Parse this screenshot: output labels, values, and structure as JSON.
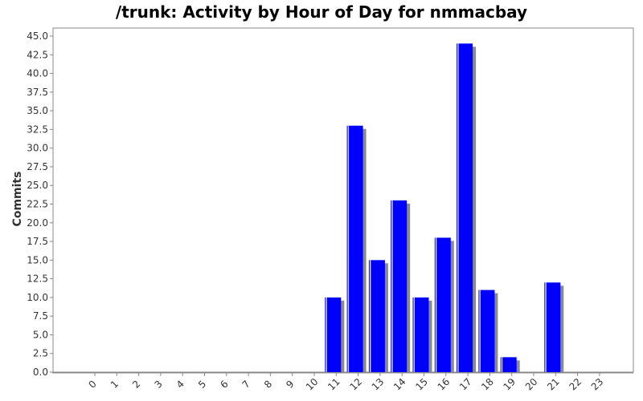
{
  "chart_data": {
    "type": "bar",
    "title": "/trunk: Activity by Hour of Day for nmmacbay",
    "xlabel": "",
    "ylabel": "Commits",
    "categories": [
      "0",
      "1",
      "2",
      "3",
      "4",
      "5",
      "6",
      "7",
      "8",
      "9",
      "10",
      "11",
      "12",
      "13",
      "14",
      "15",
      "16",
      "17",
      "18",
      "19",
      "20",
      "21",
      "22",
      "23"
    ],
    "values": [
      0,
      0,
      0,
      0,
      0,
      0,
      0,
      0,
      0,
      0,
      0,
      10,
      33,
      15,
      23,
      10,
      18,
      44,
      11,
      2,
      0,
      12,
      0,
      0
    ],
    "ylim": [
      0,
      45
    ],
    "yticks": [
      "0.0",
      "2.5",
      "5.0",
      "7.5",
      "10.0",
      "12.5",
      "15.0",
      "17.5",
      "20.0",
      "22.5",
      "25.0",
      "27.5",
      "30.0",
      "32.5",
      "35.0",
      "37.5",
      "40.0",
      "42.5",
      "45.0"
    ],
    "grid": false,
    "legend": "none",
    "colors": {
      "bar": "#0000ff",
      "bar_highlight": "#ccccff",
      "shadow": "#8a8a8a",
      "axis": "#888888"
    }
  }
}
